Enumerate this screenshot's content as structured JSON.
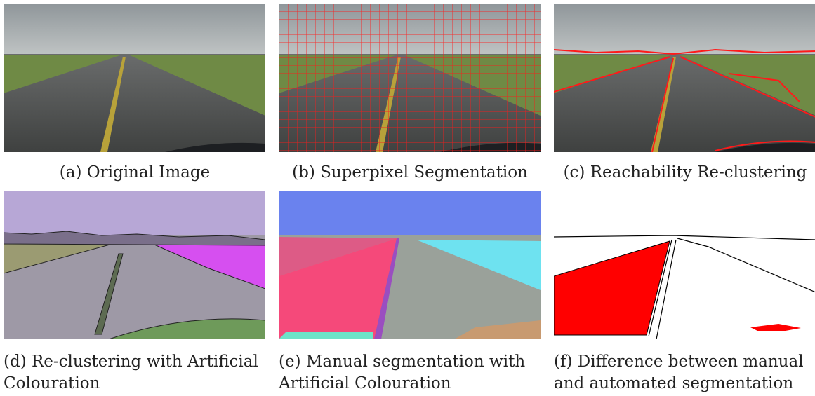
{
  "panels": [
    {
      "caption": "(a) Original Image"
    },
    {
      "caption": "(b) Superpixel Segmentation"
    },
    {
      "caption": "(c) Reachability Re-clustering"
    },
    {
      "caption": "(d) Re-clustering with Artificial Colouration"
    },
    {
      "caption": "(e) Manual segmentation with Artificial Colouration"
    },
    {
      "caption": "(f) Difference between manual and automated segmentation"
    }
  ]
}
